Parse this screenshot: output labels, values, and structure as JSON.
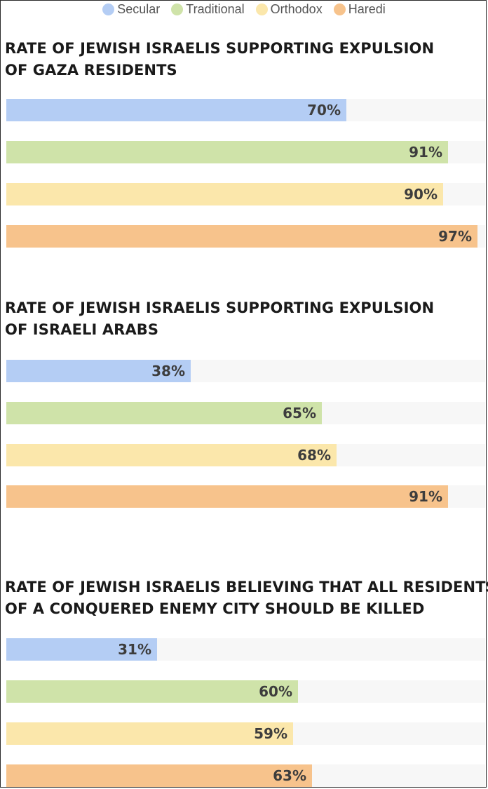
{
  "legend": [
    {
      "label": "Secular",
      "color": "#b4cdf4"
    },
    {
      "label": "Traditional",
      "color": "#cfe3a9"
    },
    {
      "label": "Orthodox",
      "color": "#fbe7ab"
    },
    {
      "label": "Haredi",
      "color": "#f7c38c"
    }
  ],
  "chart_data": [
    {
      "type": "bar",
      "orientation": "horizontal",
      "title": "RATE OF JEWISH ISRAELIS SUPPORTING EXPULSION OF GAZA RESIDENTS",
      "title_lines": [
        "RATE OF JEWISH ISRAELIS SUPPORTING EXPULSION",
        "OF GAZA RESIDENTS"
      ],
      "categories": [
        "Secular",
        "Traditional",
        "Orthodox",
        "Haredi"
      ],
      "values": [
        70,
        91,
        90,
        97
      ],
      "value_labels": [
        "70%",
        "91%",
        "90%",
        "97%"
      ],
      "xlim": [
        0,
        100
      ],
      "unit": "%"
    },
    {
      "type": "bar",
      "orientation": "horizontal",
      "title": "RATE OF JEWISH ISRAELIS SUPPORTING EXPULSION OF ISRAELI ARABS",
      "title_lines": [
        "RATE OF JEWISH ISRAELIS SUPPORTING EXPULSION",
        "OF ISRAELI ARABS"
      ],
      "categories": [
        "Secular",
        "Traditional",
        "Orthodox",
        "Haredi"
      ],
      "values": [
        38,
        65,
        68,
        91
      ],
      "value_labels": [
        "38%",
        "65%",
        "68%",
        "91%"
      ],
      "xlim": [
        0,
        100
      ],
      "unit": "%"
    },
    {
      "type": "bar",
      "orientation": "horizontal",
      "title": "RATE OF JEWISH ISRAELIS BELIEVING THAT ALL RESIDENTS OF A CONQUERED ENEMY CITY SHOULD BE KILLED",
      "title_lines": [
        "RATE OF JEWISH ISRAELIS BELIEVING THAT ALL RESIDENTS",
        "OF A CONQUERED ENEMY CITY SHOULD BE KILLED"
      ],
      "categories": [
        "Secular",
        "Traditional",
        "Orthodox",
        "Haredi"
      ],
      "values": [
        31,
        60,
        59,
        63
      ],
      "value_labels": [
        "31%",
        "60%",
        "59%",
        "63%"
      ],
      "xlim": [
        0,
        100
      ],
      "unit": "%"
    }
  ]
}
